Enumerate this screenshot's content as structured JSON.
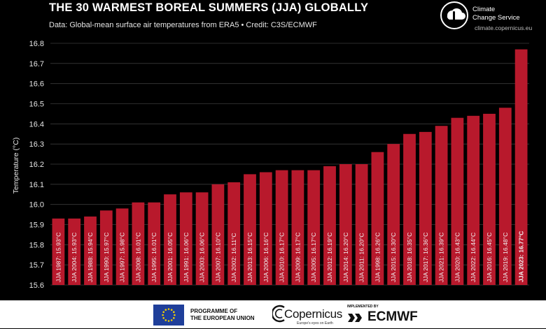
{
  "header": {
    "title": "THE 30 WARMEST BOREAL SUMMERS (JJA) GLOBALLY",
    "subtitle": "Data: Global-mean surface air temperatures from ERA5 • Credit: C3S/ECMWF"
  },
  "brand": {
    "name_line1": "Climate",
    "name_line2": "Change Service",
    "url": "climate.copernicus.eu"
  },
  "footer": {
    "eu_line1": "PROGRAMME OF",
    "eu_line2": "THE EUROPEAN UNION",
    "copernicus_word": "Copernicus",
    "copernicus_tagline": "Europe's eyes on Earth",
    "implemented_by": "IMPLEMENTED BY",
    "ecmwf_word": "ECMWF"
  },
  "colors": {
    "bar": "#b8192c",
    "background": "#000000",
    "grid": "#3a3a3a"
  },
  "chart_data": {
    "type": "bar",
    "ylabel": "Temperature (°C)",
    "ylim": [
      15.6,
      16.8
    ],
    "yticks": [
      15.6,
      15.7,
      15.8,
      15.9,
      16.0,
      16.1,
      16.2,
      16.3,
      16.4,
      16.5,
      16.6,
      16.7,
      16.8
    ],
    "ytick_labels": [
      "15.6",
      "15.7",
      "15.8",
      "15.9",
      "16.0",
      "16.1",
      "16.2",
      "16.3",
      "16.4",
      "16.5",
      "16.6",
      "16.7",
      "16.8"
    ],
    "grid": true,
    "categories": [
      "JJA 1987",
      "JJA 2004",
      "JJA 1988",
      "JJA 1990",
      "JJA 1997",
      "JJA 2008",
      "JJA 1995",
      "JJA 2001",
      "JJA 1991",
      "JJA 2003",
      "JJA 2007",
      "JJA 2002",
      "JJA 2013",
      "JJA 2006",
      "JJA 2010",
      "JJA 2009",
      "JJA 2005",
      "JJA 2012",
      "JJA 2014",
      "JJA 2011",
      "JJA 1998",
      "JJA 2015",
      "JJA 2018",
      "JJA 2017",
      "JJA 2021",
      "JJA 2020",
      "JJA 2022",
      "JJA 2016",
      "JJA 2019",
      "JJA 2023"
    ],
    "values": [
      15.93,
      15.93,
      15.94,
      15.97,
      15.98,
      16.01,
      16.01,
      16.05,
      16.06,
      16.06,
      16.1,
      16.11,
      16.15,
      16.16,
      16.17,
      16.17,
      16.17,
      16.19,
      16.2,
      16.2,
      16.26,
      16.3,
      16.35,
      16.36,
      16.39,
      16.43,
      16.44,
      16.45,
      16.48,
      16.77
    ],
    "bar_labels": [
      "JJA 1987: 15.93°C",
      "JJA 2004: 15.93°C",
      "JJA 1988: 15.94°C",
      "JJA 1990: 15.97°C",
      "JJA 1997: 15.98°C",
      "JJA 2008: 16.01°C",
      "JJA 1995: 16.01°C",
      "JJA 2001: 16.05°C",
      "JJA 1991: 16.06°C",
      "JJA 2003: 16.06°C",
      "JJA 2007: 16.10°C",
      "JJA 2002: 16.11°C",
      "JJA 2013: 16.15°C",
      "JJA 2006: 16.16°C",
      "JJA 2010: 16.17°C",
      "JJA 2009: 16.17°C",
      "JJA 2005: 16.17°C",
      "JJA 2012: 16.19°C",
      "JJA 2014: 16.20°C",
      "JJA 2011: 16.20°C",
      "JJA 1998: 16.26°C",
      "JJA 2015: 16.30°C",
      "JJA 2018: 16.35°C",
      "JJA 2017: 16.36°C",
      "JJA 2021: 16.39°C",
      "JJA 2020: 16.43°C",
      "JJA 2022: 16.44°C",
      "JJA 2016: 16.45°C",
      "JJA 2019: 16.48°C",
      "JJA 2023: 16.77°C"
    ],
    "highlight_index": 29
  }
}
